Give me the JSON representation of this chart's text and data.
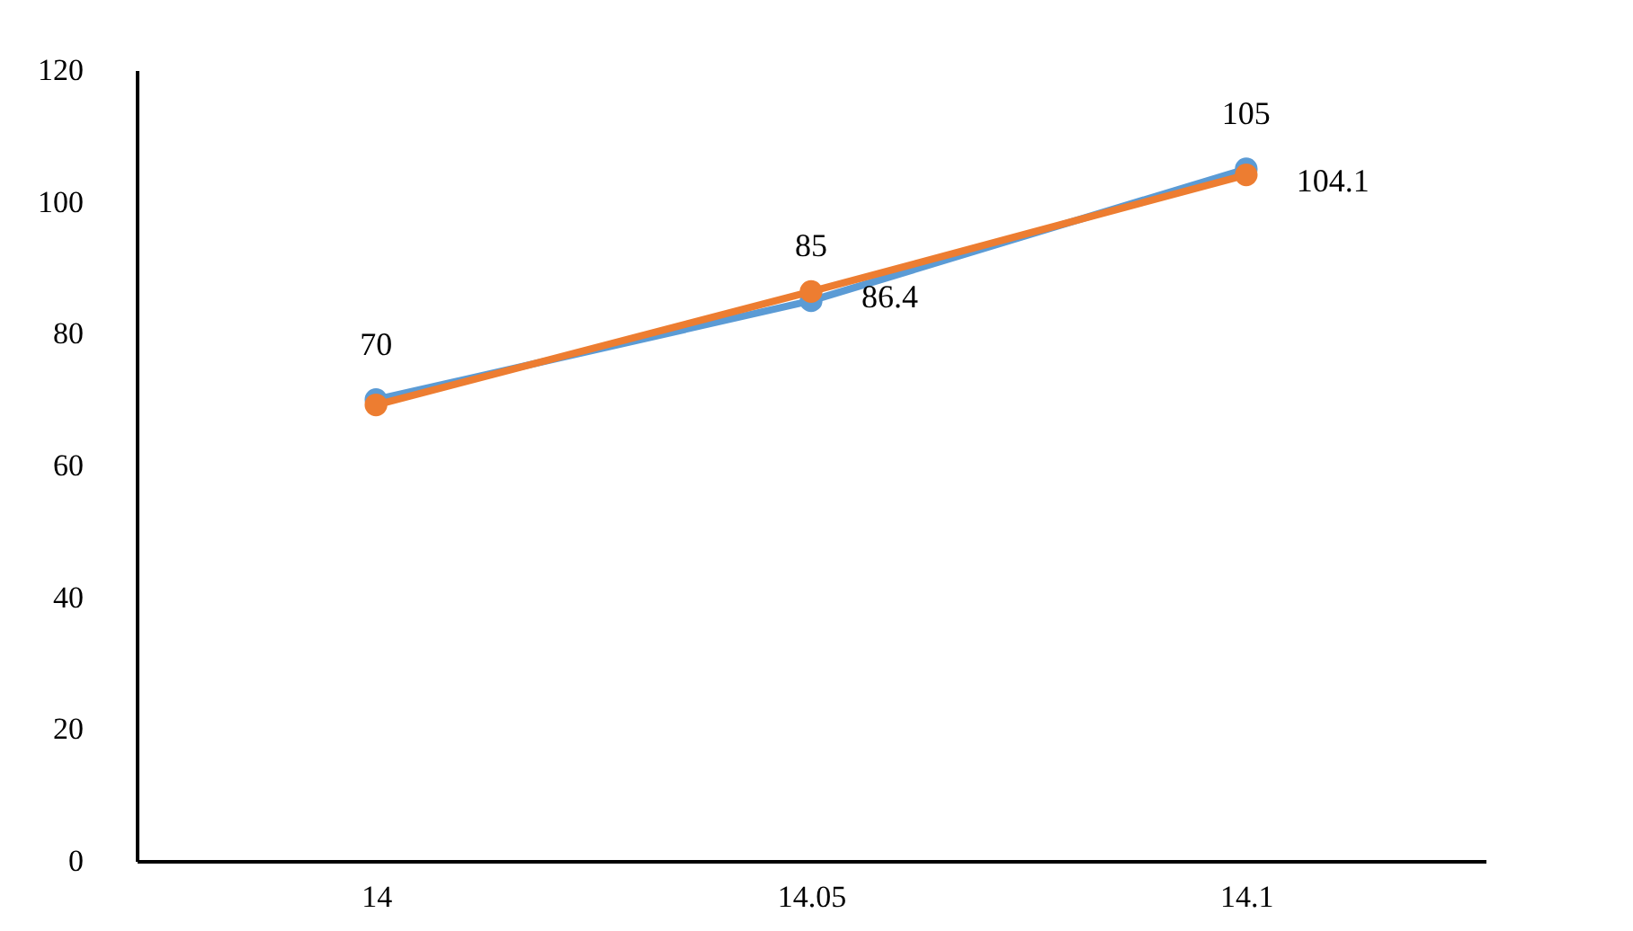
{
  "chart_data": {
    "type": "line",
    "categories": [
      "14",
      "14.05",
      "14.1"
    ],
    "series": [
      {
        "color": "#5b9bd5",
        "values": [
          70,
          85,
          105
        ],
        "value_labels": [
          "70",
          "85",
          "105"
        ]
      },
      {
        "color": "#ed7d31",
        "values": [
          69.2,
          86.4,
          104.1
        ],
        "value_labels": [
          null,
          "86.4",
          "104.1"
        ]
      }
    ],
    "ylim": [
      0,
      120
    ],
    "yticks": [
      0,
      20,
      40,
      60,
      80,
      100,
      120
    ],
    "grid": false,
    "marker": "circle",
    "line_style": "solid"
  }
}
